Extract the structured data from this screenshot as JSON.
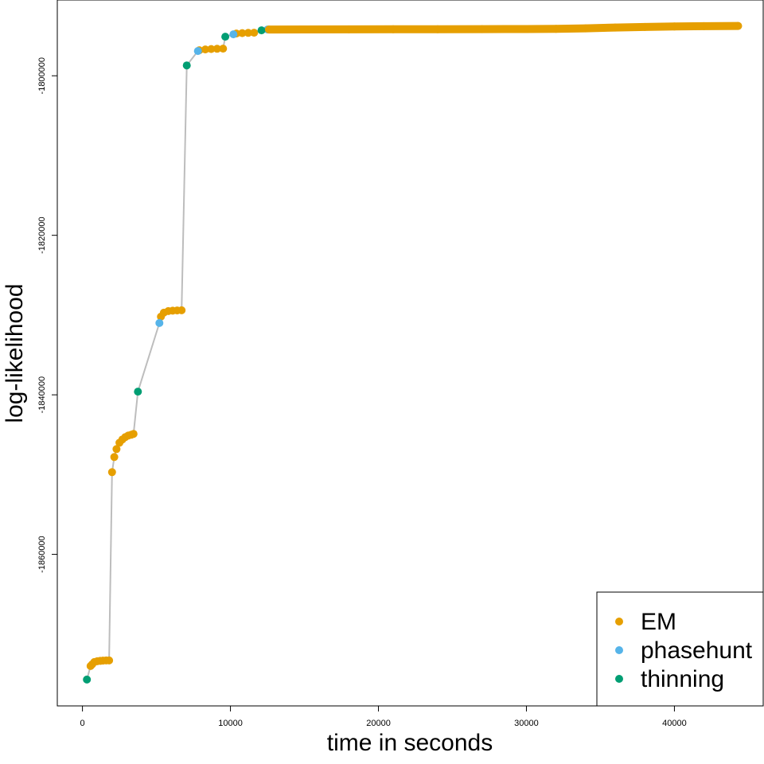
{
  "chart_data": {
    "type": "scatter",
    "xlabel": "time in seconds",
    "ylabel": "log-likelihood",
    "xlim": [
      -1700,
      46000
    ],
    "ylim": [
      -1879000,
      -1790500
    ],
    "x_ticks": [
      0,
      10000,
      20000,
      30000,
      40000
    ],
    "x_tick_labels": [
      "0",
      "10000",
      "20000",
      "30000",
      "40000"
    ],
    "y_ticks": [
      -1860000,
      -1840000,
      -1820000,
      -1800000
    ],
    "y_tick_labels": [
      "-1860000",
      "-1840000",
      "-1820000",
      "-1800000"
    ],
    "grid": false,
    "legend_position": "bottom-right",
    "line_color": "#bdbdbd",
    "series": [
      {
        "name": "EM",
        "color": "#E69F00",
        "points": [
          [
            550,
            -1874000
          ],
          [
            650,
            -1873800
          ],
          [
            800,
            -1873500
          ],
          [
            1000,
            -1873400
          ],
          [
            1200,
            -1873350
          ],
          [
            1400,
            -1873320
          ],
          [
            1600,
            -1873300
          ],
          [
            1800,
            -1873300
          ],
          [
            2000,
            -1849700
          ],
          [
            2150,
            -1847800
          ],
          [
            2300,
            -1846800
          ],
          [
            2500,
            -1846000
          ],
          [
            2700,
            -1845600
          ],
          [
            2900,
            -1845300
          ],
          [
            3100,
            -1845100
          ],
          [
            3300,
            -1845000
          ],
          [
            3450,
            -1844900
          ],
          [
            5300,
            -1830200
          ],
          [
            5500,
            -1829700
          ],
          [
            5800,
            -1829500
          ],
          [
            6100,
            -1829450
          ],
          [
            6400,
            -1829420
          ],
          [
            6700,
            -1829400
          ],
          [
            7900,
            -1796800
          ],
          [
            8300,
            -1796700
          ],
          [
            8700,
            -1796650
          ],
          [
            9100,
            -1796620
          ],
          [
            9500,
            -1796600
          ],
          [
            10400,
            -1794700
          ],
          [
            10800,
            -1794650
          ],
          [
            11200,
            -1794620
          ],
          [
            11600,
            -1794600
          ],
          [
            12600,
            -1794200
          ],
          [
            15000,
            -1794190
          ],
          [
            18000,
            -1794180
          ],
          [
            21000,
            -1794170
          ],
          [
            24000,
            -1794160
          ],
          [
            27000,
            -1794150
          ],
          [
            30000,
            -1794140
          ],
          [
            32000,
            -1794120
          ],
          [
            34000,
            -1794050
          ],
          [
            36000,
            -1793950
          ],
          [
            38000,
            -1793880
          ],
          [
            40000,
            -1793820
          ],
          [
            42000,
            -1793780
          ],
          [
            44300,
            -1793750
          ]
        ]
      },
      {
        "name": "phasehunt",
        "color": "#56B4E9",
        "points": [
          [
            5200,
            -1831000
          ],
          [
            7800,
            -1796900
          ],
          [
            10200,
            -1794800
          ],
          [
            12500,
            -1794200
          ]
        ]
      },
      {
        "name": "thinning",
        "color": "#009E73",
        "points": [
          [
            300,
            -1875700
          ],
          [
            3750,
            -1839600
          ],
          [
            7050,
            -1798700
          ],
          [
            9650,
            -1795100
          ],
          [
            12100,
            -1794300
          ]
        ]
      }
    ],
    "path_order": [
      [
        300,
        -1875700
      ],
      [
        550,
        -1874000
      ],
      [
        650,
        -1873800
      ],
      [
        800,
        -1873500
      ],
      [
        1000,
        -1873400
      ],
      [
        1200,
        -1873350
      ],
      [
        1400,
        -1873320
      ],
      [
        1600,
        -1873300
      ],
      [
        1800,
        -1873300
      ],
      [
        2000,
        -1849700
      ],
      [
        2150,
        -1847800
      ],
      [
        2300,
        -1846800
      ],
      [
        2500,
        -1846000
      ],
      [
        2700,
        -1845600
      ],
      [
        2900,
        -1845300
      ],
      [
        3100,
        -1845100
      ],
      [
        3300,
        -1845000
      ],
      [
        3450,
        -1844900
      ],
      [
        3750,
        -1839600
      ],
      [
        5200,
        -1831000
      ],
      [
        5300,
        -1830200
      ],
      [
        5500,
        -1829700
      ],
      [
        5800,
        -1829500
      ],
      [
        6100,
        -1829450
      ],
      [
        6400,
        -1829420
      ],
      [
        6700,
        -1829400
      ],
      [
        7050,
        -1798700
      ],
      [
        7800,
        -1796900
      ],
      [
        7900,
        -1796800
      ],
      [
        8300,
        -1796700
      ],
      [
        8700,
        -1796650
      ],
      [
        9100,
        -1796620
      ],
      [
        9500,
        -1796600
      ],
      [
        9650,
        -1795100
      ],
      [
        10200,
        -1794800
      ],
      [
        10400,
        -1794700
      ],
      [
        10800,
        -1794650
      ],
      [
        11200,
        -1794620
      ],
      [
        11600,
        -1794600
      ],
      [
        12100,
        -1794300
      ],
      [
        12500,
        -1794200
      ],
      [
        12600,
        -1794200
      ],
      [
        15000,
        -1794190
      ],
      [
        18000,
        -1794180
      ],
      [
        21000,
        -1794170
      ],
      [
        24000,
        -1794160
      ],
      [
        27000,
        -1794150
      ],
      [
        30000,
        -1794140
      ],
      [
        32000,
        -1794120
      ],
      [
        34000,
        -1794050
      ],
      [
        36000,
        -1793950
      ],
      [
        38000,
        -1793880
      ],
      [
        40000,
        -1793820
      ],
      [
        42000,
        -1793780
      ],
      [
        44300,
        -1793750
      ]
    ]
  }
}
